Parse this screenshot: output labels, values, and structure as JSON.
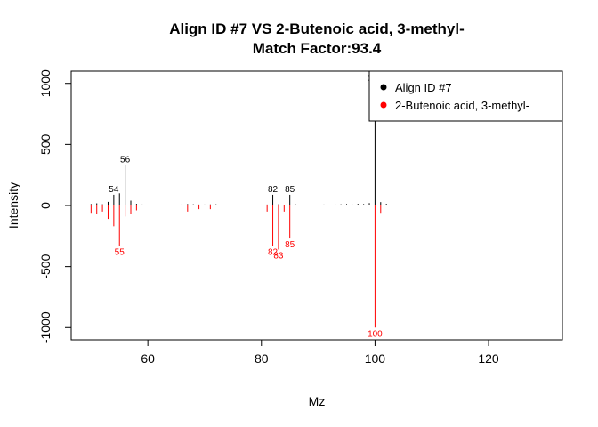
{
  "chart_data": {
    "type": "bar",
    "title": "Align ID #7 VS 2-Butenoic acid, 3-methyl-",
    "subtitle": "Match Factor:93.4",
    "xlabel": "Mz",
    "ylabel": "Intensity",
    "xlim": [
      46.5,
      133
    ],
    "ylim": [
      -1100,
      1100
    ],
    "x_ticks": [
      60,
      80,
      100,
      120
    ],
    "y_ticks": [
      -1000,
      -500,
      0,
      500,
      1000
    ],
    "grid": false,
    "legend_position": "top-right",
    "series": [
      {
        "name": "Align ID #7",
        "color": "#000000",
        "direction": "up",
        "x": [
          50,
          51,
          52,
          53,
          54,
          55,
          56,
          57,
          58,
          59,
          60,
          61,
          62,
          63,
          64,
          65,
          66,
          67,
          68,
          69,
          70,
          71,
          72,
          73,
          74,
          75,
          76,
          77,
          78,
          79,
          80,
          81,
          82,
          83,
          84,
          85,
          86,
          87,
          88,
          89,
          90,
          91,
          92,
          93,
          94,
          95,
          96,
          97,
          98,
          99,
          100,
          101,
          102,
          103,
          104,
          105,
          106,
          107,
          108,
          109,
          110,
          111,
          112,
          113,
          114,
          115,
          116,
          117,
          118,
          119,
          120,
          121,
          122,
          123,
          124,
          125,
          126,
          127,
          128,
          129,
          130,
          131,
          132
        ],
        "values": [
          12,
          18,
          10,
          30,
          88,
          100,
          330,
          40,
          14,
          8,
          6,
          4,
          6,
          4,
          6,
          5,
          10,
          12,
          10,
          8,
          8,
          9,
          10,
          6,
          5,
          6,
          4,
          7,
          6,
          4,
          6,
          8,
          88,
          10,
          6,
          88,
          10,
          6,
          5,
          6,
          4,
          8,
          6,
          8,
          10,
          12,
          8,
          14,
          12,
          20,
          1000,
          28,
          14,
          6,
          4,
          6,
          4,
          5,
          4,
          6,
          5,
          4,
          6,
          4,
          5,
          4,
          6,
          4,
          5,
          4,
          6,
          5,
          4,
          5,
          4,
          6,
          4,
          5,
          4,
          6,
          5,
          4,
          6
        ],
        "labels": [
          {
            "x": 54,
            "text": "54",
            "y": 88
          },
          {
            "x": 56,
            "text": "56",
            "y": 330
          },
          {
            "x": 82,
            "text": "82",
            "y": 88
          },
          {
            "x": 85,
            "text": "85",
            "y": 88
          },
          {
            "x": 100,
            "text": "100",
            "y": 1000
          }
        ]
      },
      {
        "name": "2-Butenoic acid, 3-methyl-",
        "color": "#ff0000",
        "direction": "down",
        "x": [
          50,
          51,
          52,
          53,
          54,
          55,
          56,
          57,
          58,
          67,
          69,
          71,
          81,
          82,
          83,
          84,
          85,
          100,
          101
        ],
        "values": [
          60,
          70,
          50,
          110,
          170,
          330,
          90,
          70,
          40,
          50,
          30,
          30,
          50,
          330,
          360,
          50,
          270,
          1000,
          60
        ],
        "labels": [
          {
            "x": 55,
            "text": "55",
            "y": 330
          },
          {
            "x": 82,
            "text": "82",
            "y": 330
          },
          {
            "x": 83,
            "text": "83",
            "y": 360
          },
          {
            "x": 85,
            "text": "85",
            "y": 270
          },
          {
            "x": 100,
            "text": "100",
            "y": 1000
          }
        ]
      }
    ]
  }
}
